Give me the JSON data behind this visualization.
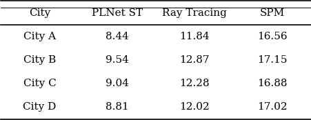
{
  "columns": [
    "City",
    "PLNet ST",
    "Ray Tracing",
    "SPM"
  ],
  "rows": [
    [
      "City A",
      "8.44",
      "11.84",
      "16.56"
    ],
    [
      "City B",
      "9.54",
      "12.87",
      "17.15"
    ],
    [
      "City C",
      "9.04",
      "12.28",
      "16.88"
    ],
    [
      "City D",
      "8.81",
      "12.02",
      "17.02"
    ]
  ],
  "background_color": "#ffffff",
  "text_color": "#000000",
  "font_size": 11,
  "header_font_size": 11
}
